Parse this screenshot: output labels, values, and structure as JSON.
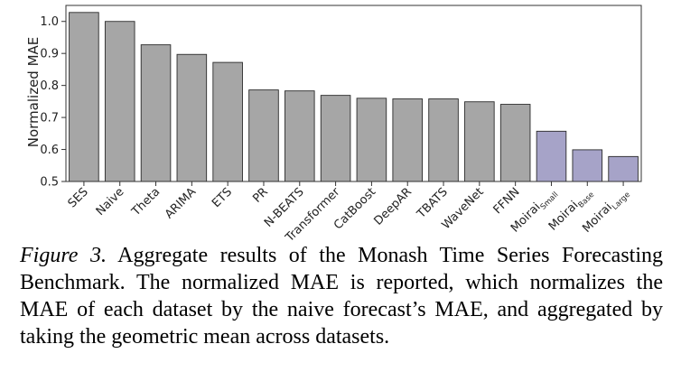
{
  "caption": {
    "label": "Figure 3.",
    "text": "Aggregate results of the Monash Time Series Forecasting Benchmark. The normalized MAE is reported, which normalizes the MAE of each dataset by the naive forecast’s MAE, and aggregated by taking the geometric mean across datasets."
  },
  "colors": {
    "baseline_bar": "#a6a6a6",
    "moirai_bar": "#a6a3c8",
    "bar_edge": "#2b2b2b"
  },
  "chart_data": {
    "type": "bar",
    "title": "",
    "xlabel": "",
    "ylabel": "Normalized MAE",
    "ylim": [
      0.5,
      1.05
    ],
    "yticks": [
      0.5,
      0.6,
      0.7,
      0.8,
      0.9,
      1.0
    ],
    "ytick_labels": [
      "0.5",
      "0.6",
      "0.7",
      "0.8",
      "0.9",
      "1.0"
    ],
    "grid": false,
    "categories": [
      {
        "label": "SES",
        "sub": ""
      },
      {
        "label": "Naive",
        "sub": ""
      },
      {
        "label": "Theta",
        "sub": ""
      },
      {
        "label": "ARIMA",
        "sub": ""
      },
      {
        "label": "ETS",
        "sub": ""
      },
      {
        "label": "PR",
        "sub": ""
      },
      {
        "label": "N-BEATS",
        "sub": ""
      },
      {
        "label": "Transformer",
        "sub": ""
      },
      {
        "label": "CatBoost",
        "sub": ""
      },
      {
        "label": "DeepAR",
        "sub": ""
      },
      {
        "label": "TBATS",
        "sub": ""
      },
      {
        "label": "WaveNet",
        "sub": ""
      },
      {
        "label": "FFNN",
        "sub": ""
      },
      {
        "label": "Moirai",
        "sub": "Small"
      },
      {
        "label": "Moirai",
        "sub": "Base"
      },
      {
        "label": "Moirai",
        "sub": "Large"
      }
    ],
    "values": [
      1.028,
      1.0,
      0.927,
      0.897,
      0.872,
      0.786,
      0.783,
      0.769,
      0.76,
      0.758,
      0.758,
      0.749,
      0.741,
      0.657,
      0.599,
      0.578
    ],
    "bar_group": [
      "baseline",
      "baseline",
      "baseline",
      "baseline",
      "baseline",
      "baseline",
      "baseline",
      "baseline",
      "baseline",
      "baseline",
      "baseline",
      "baseline",
      "baseline",
      "moirai",
      "moirai",
      "moirai"
    ]
  }
}
